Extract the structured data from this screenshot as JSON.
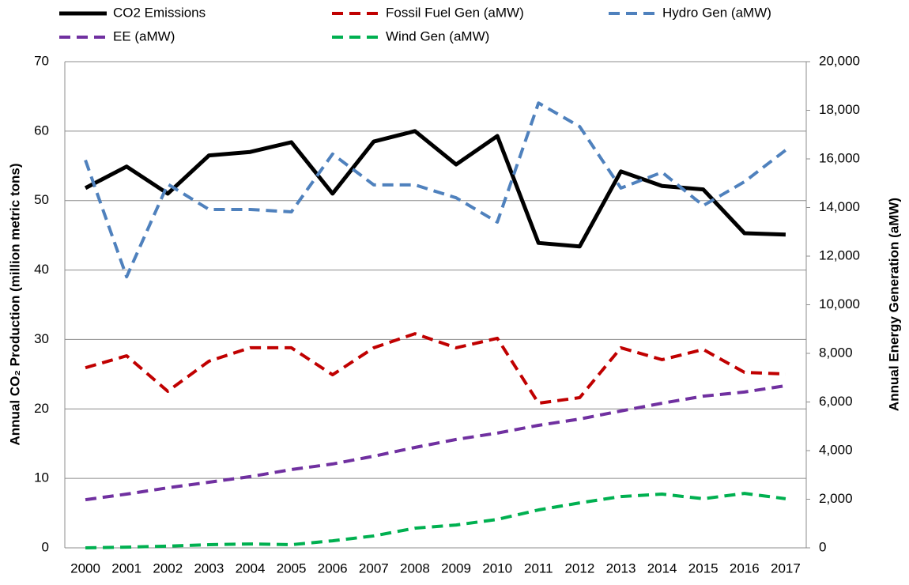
{
  "chart_data": {
    "type": "line",
    "y_label": "Annual CO₂ Production (million metric tons)",
    "y2_label": "Annual Energy Generation (aMW)",
    "categories": [
      "2000",
      "2001",
      "2002",
      "2003",
      "2004",
      "2005",
      "2006",
      "2007",
      "2008",
      "2009",
      "2010",
      "2011",
      "2012",
      "2013",
      "2014",
      "2015",
      "2016",
      "2017"
    ],
    "ylim": [
      0,
      70
    ],
    "yticks": [
      0,
      10,
      20,
      30,
      40,
      50,
      60,
      70
    ],
    "y2lim": [
      0,
      20000
    ],
    "y2ticks": [
      0,
      {
        "value": 2000,
        "label": "2,000"
      },
      {
        "value": 4000,
        "label": "4,000"
      },
      {
        "value": 6000,
        "label": "6,000"
      },
      {
        "value": 8000,
        "label": "8,000"
      },
      {
        "value": 10000,
        "label": "10,000"
      },
      {
        "value": 12000,
        "label": "12,000"
      },
      {
        "value": 14000,
        "label": "14,000"
      },
      {
        "value": 16000,
        "label": "16,000"
      },
      {
        "value": 18000,
        "label": "18,000"
      },
      {
        "value": 20000,
        "label": "20,000"
      }
    ],
    "grid": true,
    "legend": "top",
    "series": [
      {
        "name": "CO2 Emissions",
        "color": "#000000",
        "line_style": "solid",
        "axis": "y",
        "values": [
          51.8,
          54.9,
          51.0,
          56.5,
          57.0,
          58.4,
          51.0,
          58.5,
          60.0,
          55.2,
          59.3,
          43.9,
          43.4,
          54.2,
          52.1,
          51.6,
          45.3,
          45.1
        ]
      },
      {
        "name": "Fossil Fuel Gen (aMW)",
        "color": "#c00000",
        "line_style": "dashed",
        "axis": "y2",
        "values": [
          7410,
          7900,
          6440,
          7680,
          8230,
          8230,
          7120,
          8230,
          8810,
          8230,
          8620,
          5950,
          6180,
          8230,
          7740,
          8160,
          7220,
          7150
        ]
      },
      {
        "name": "Hydro Gen (aMW)",
        "color": "#4f81bd",
        "line_style": "dashed",
        "axis": "y2",
        "values": [
          15950,
          11150,
          14960,
          13920,
          13920,
          13820,
          16200,
          14930,
          14930,
          14400,
          13400,
          18300,
          17330,
          14800,
          15450,
          14080,
          15060,
          16360
        ]
      },
      {
        "name": "EE (aMW)",
        "color": "#7030a0",
        "line_style": "dashed",
        "axis": "y2",
        "values": [
          1980,
          2210,
          2470,
          2700,
          2930,
          3220,
          3450,
          3770,
          4130,
          4460,
          4720,
          5040,
          5300,
          5630,
          5950,
          6240,
          6410,
          6670
        ]
      },
      {
        "name": "Wind Gen (aMW)",
        "color": "#00b050",
        "line_style": "dashed",
        "axis": "y2",
        "values": [
          0,
          30,
          70,
          130,
          160,
          130,
          290,
          490,
          810,
          940,
          1170,
          1560,
          1850,
          2110,
          2210,
          2020,
          2240,
          2020
        ]
      }
    ]
  }
}
